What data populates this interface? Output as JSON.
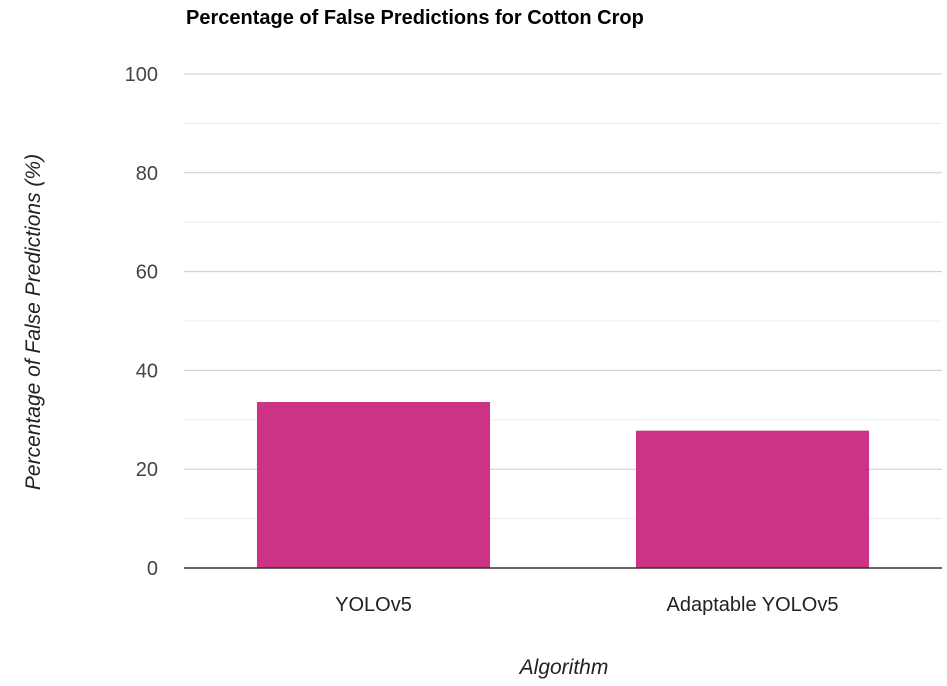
{
  "chart_data": {
    "type": "bar",
    "title": "Percentage of False Predictions for Cotton Crop",
    "xlabel": "Algorithm",
    "ylabel": "Percentage of False Predictions (%)",
    "categories": [
      "YOLOv5",
      "Adaptable YOLOv5"
    ],
    "values": [
      33.6,
      27.8
    ],
    "ylim": [
      0,
      100
    ],
    "yticks": [
      0,
      20,
      40,
      60,
      80,
      100
    ],
    "minor_gridlines": true,
    "grid": true,
    "legend": "none",
    "colors": {
      "bar": "#cc3385",
      "grid_major": "#cccccc",
      "grid_minor": "#ececec",
      "axis": "#333333"
    }
  }
}
